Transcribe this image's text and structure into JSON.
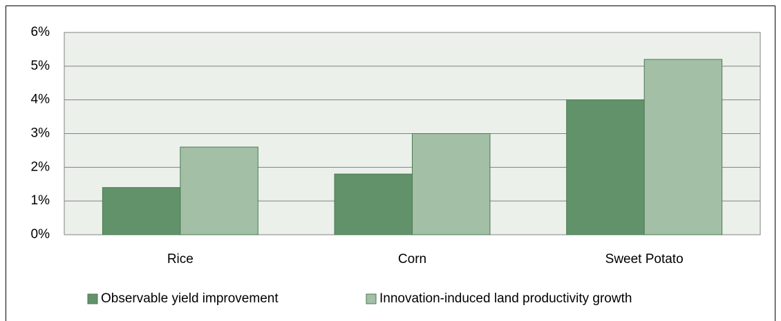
{
  "chart_data": {
    "type": "bar",
    "categories": [
      "Rice",
      "Corn",
      "Sweet Potato"
    ],
    "series": [
      {
        "name": "Observable yield improvement",
        "color": "#62926a",
        "values": [
          1.4,
          1.8,
          4.0
        ]
      },
      {
        "name": "Innovation-induced land productivity growth",
        "color": "#a3bfa5",
        "values": [
          2.6,
          3.0,
          5.2
        ]
      }
    ],
    "ylim": [
      0,
      6
    ],
    "yticks": [
      {
        "value": 0,
        "label": "0%"
      },
      {
        "value": 1,
        "label": "1%"
      },
      {
        "value": 2,
        "label": "2%"
      },
      {
        "value": 3,
        "label": "3%"
      },
      {
        "value": 4,
        "label": "4%"
      },
      {
        "value": 5,
        "label": "5%"
      },
      {
        "value": 6,
        "label": "6%"
      }
    ],
    "grid": true,
    "legend": "bottom"
  }
}
